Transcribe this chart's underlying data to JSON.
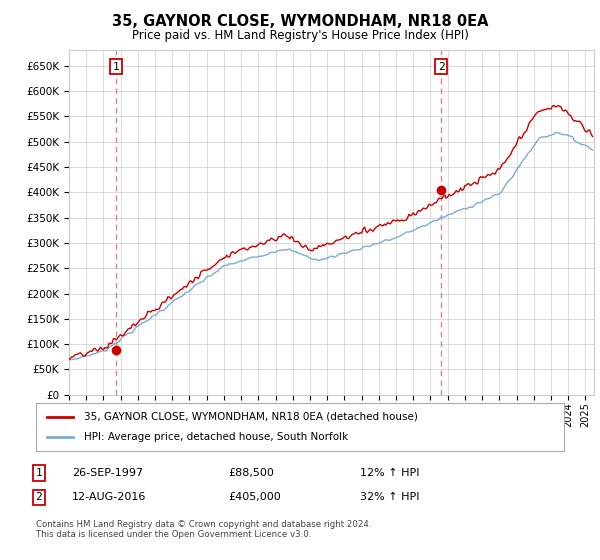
{
  "title": "35, GAYNOR CLOSE, WYMONDHAM, NR18 0EA",
  "subtitle": "Price paid vs. HM Land Registry's House Price Index (HPI)",
  "ylabel_ticks": [
    "£0",
    "£50K",
    "£100K",
    "£150K",
    "£200K",
    "£250K",
    "£300K",
    "£350K",
    "£400K",
    "£450K",
    "£500K",
    "£550K",
    "£600K",
    "£650K"
  ],
  "ytick_values": [
    0,
    50000,
    100000,
    150000,
    200000,
    250000,
    300000,
    350000,
    400000,
    450000,
    500000,
    550000,
    600000,
    650000
  ],
  "xlim_start": 1995.0,
  "xlim_end": 2025.5,
  "ylim": [
    0,
    680000
  ],
  "sale1_x": 1997.74,
  "sale1_y": 88500,
  "sale1_label": "1",
  "sale2_x": 2016.62,
  "sale2_y": 405000,
  "sale2_label": "2",
  "legend_line1": "35, GAYNOR CLOSE, WYMONDHAM, NR18 0EA (detached house)",
  "legend_line2": "HPI: Average price, detached house, South Norfolk",
  "ann1_num": "1",
  "ann1_date": "26-SEP-1997",
  "ann1_price": "£88,500",
  "ann1_hpi": "12% ↑ HPI",
  "ann2_num": "2",
  "ann2_date": "12-AUG-2016",
  "ann2_price": "£405,000",
  "ann2_hpi": "32% ↑ HPI",
  "footer": "Contains HM Land Registry data © Crown copyright and database right 2024.\nThis data is licensed under the Open Government Licence v3.0.",
  "price_color": "#cc0000",
  "hpi_color": "#7aadd4",
  "vline_color": "#e88080",
  "dot_color": "#cc0000",
  "background_color": "#ffffff",
  "grid_color": "#cccccc"
}
